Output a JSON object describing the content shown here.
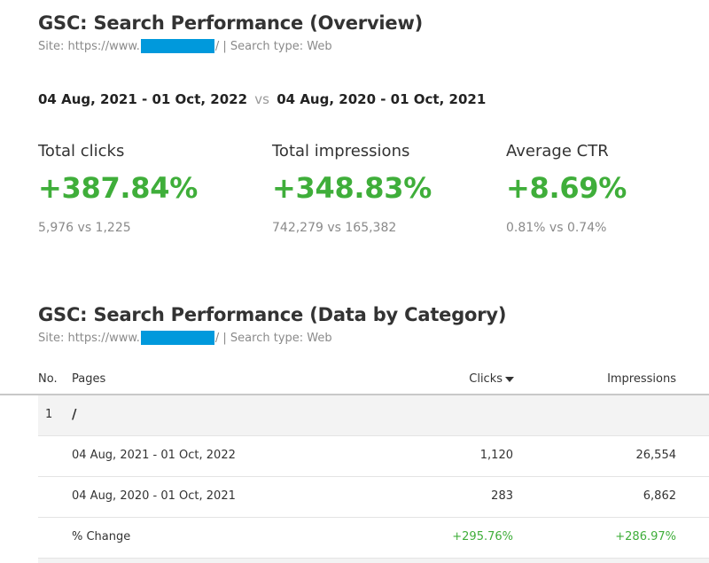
{
  "overview": {
    "title": "GSC: Search Performance (Overview)",
    "site_prefix": "Site: https://www.",
    "site_suffix": "/ | Search type: Web",
    "date_range_current": "04 Aug, 2021 - 01 Oct, 2022",
    "vs": "vs",
    "date_range_previous": "04 Aug, 2020 - 01 Oct, 2021",
    "metrics": [
      {
        "label": "Total clicks",
        "value": "+387.84%",
        "compare": "5,976 vs 1,225"
      },
      {
        "label": "Total impressions",
        "value": "+348.83%",
        "compare": "742,279 vs 165,382"
      },
      {
        "label": "Average CTR",
        "value": "+8.69%",
        "compare": "0.81% vs 0.74%"
      }
    ]
  },
  "category": {
    "title": "GSC: Search Performance (Data by Category)",
    "site_prefix": "Site: https://www.",
    "site_suffix": "/ | Search type: Web",
    "columns": {
      "no": "No.",
      "pages": "Pages",
      "clicks": "Clicks",
      "impressions": "Impressions"
    },
    "rows": [
      {
        "no": "1",
        "page": "/"
      },
      {
        "label": "04 Aug, 2021 - 01 Oct, 2022",
        "clicks": "1,120",
        "impressions": "26,554"
      },
      {
        "label": "04 Aug, 2020 - 01 Oct, 2021",
        "clicks": "283",
        "impressions": "6,862"
      },
      {
        "label": "% Change",
        "clicks": "+295.76%",
        "impressions": "+286.97%"
      }
    ]
  },
  "colors": {
    "positive": "#3fae3a",
    "redaction": "#0099dc"
  }
}
